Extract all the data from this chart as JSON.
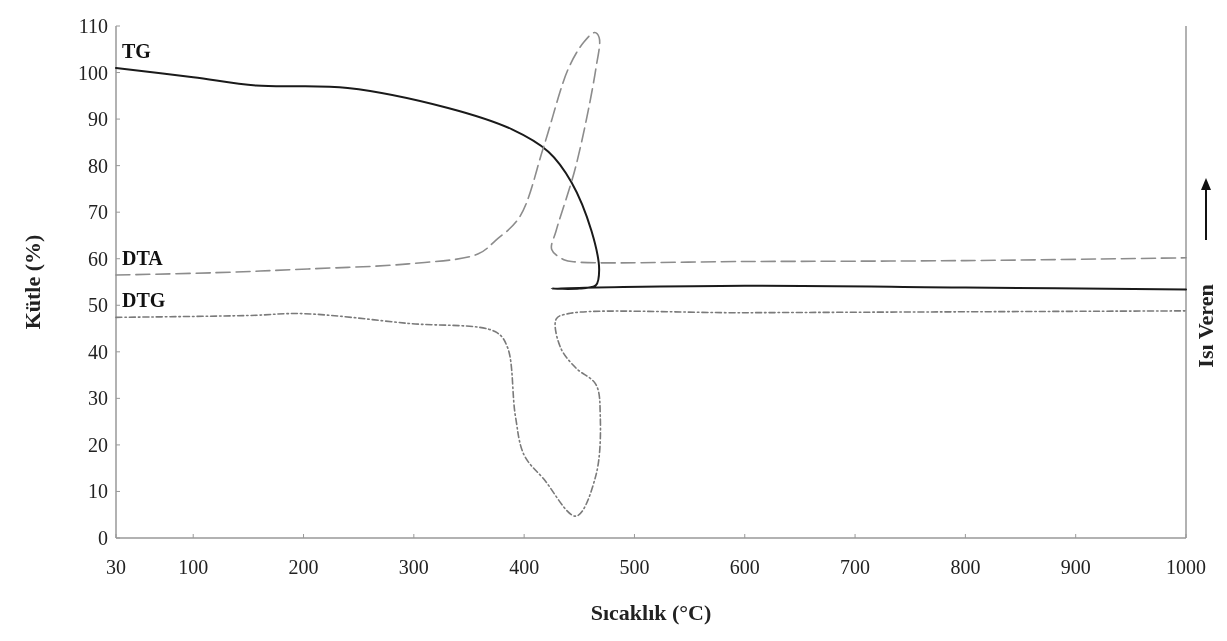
{
  "chart_data": {
    "type": "line",
    "xlabel": "Sıcaklık (°C)",
    "ylabel": "Kütle (%)",
    "y2label": "Isı Veren",
    "xlim": [
      30,
      1000
    ],
    "xticks": [
      30,
      100,
      200,
      300,
      400,
      500,
      600,
      700,
      800,
      900,
      1000
    ],
    "ylim": [
      0,
      110
    ],
    "yticks": [
      0,
      10,
      20,
      30,
      40,
      50,
      60,
      70,
      80,
      90,
      100,
      110
    ],
    "grid": false,
    "series": [
      {
        "name": "TG",
        "color": "#1a1a1a",
        "line_style": "solid",
        "x": [
          30,
          100,
          157,
          240,
          331,
          389,
          422,
          443,
          461,
          468,
          465,
          450,
          425,
          600,
          800,
          1000
        ],
        "values": [
          101,
          99,
          97.2,
          96.7,
          92.4,
          87.8,
          83,
          76.4,
          66,
          57.6,
          54.3,
          53.6,
          53.6,
          54.2,
          53.8,
          53.4
        ]
      },
      {
        "name": "DTA",
        "color": "#8c8c8c",
        "line_style": "dashed",
        "x": [
          30,
          120,
          204,
          295,
          358,
          374,
          396,
          418,
          440,
          454,
          464,
          468,
          465,
          447,
          429,
          425,
          436,
          447,
          600,
          800,
          1000
        ],
        "values": [
          56.5,
          57,
          57.8,
          58.9,
          61,
          63.9,
          69,
          84.3,
          100.8,
          106.5,
          108.6,
          107.5,
          100.8,
          80,
          66,
          62,
          59.8,
          59.3,
          59.4,
          59.6,
          60.2
        ]
      },
      {
        "name": "DTG",
        "color": "#7a7a7a",
        "line_style": "dotted",
        "x": [
          30,
          150,
          200,
          295,
          374,
          385,
          392,
          400,
          418,
          447,
          465,
          469,
          465,
          447,
          433,
          429,
          440,
          600,
          800,
          1000
        ],
        "values": [
          47.4,
          47.8,
          48.2,
          46.1,
          44.3,
          40.9,
          26.3,
          17.8,
          12.6,
          4.7,
          13.4,
          26.3,
          33,
          36.5,
          40.9,
          47,
          48.2,
          48.4,
          48.6,
          48.8
        ]
      }
    ]
  }
}
